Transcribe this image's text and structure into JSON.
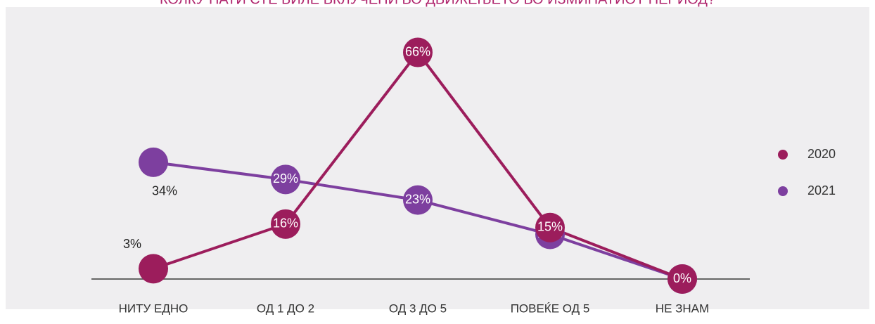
{
  "chart_data": {
    "type": "line",
    "title": "КОЛКУ ПАТИ СТЕ БИЛЕ ВКЛУЧЕНИ ВО ДВИЖЕЊЕТО ВО ИЗМИНАТИОТ ПЕРИОД?",
    "categories": [
      "НИТУ ЕДНО",
      "ОД 1 ДО 2",
      "ОД 3 ДО 5",
      "ПОВЕЌЕ ОД 5",
      "НЕ ЗНАМ"
    ],
    "series": [
      {
        "name": "2020",
        "color": "#9c1d5c",
        "values": [
          3,
          16,
          66,
          15,
          0
        ],
        "value_labels": [
          "3%",
          "16%",
          "66%",
          "15%",
          "0%"
        ]
      },
      {
        "name": "2021",
        "color": "#7d3f9f",
        "values": [
          34,
          29,
          23,
          13,
          0
        ],
        "value_labels": [
          "34%",
          "29%",
          "23%",
          "13%",
          "0%"
        ]
      }
    ],
    "ylim": [
      0,
      70
    ],
    "legend": "right"
  }
}
